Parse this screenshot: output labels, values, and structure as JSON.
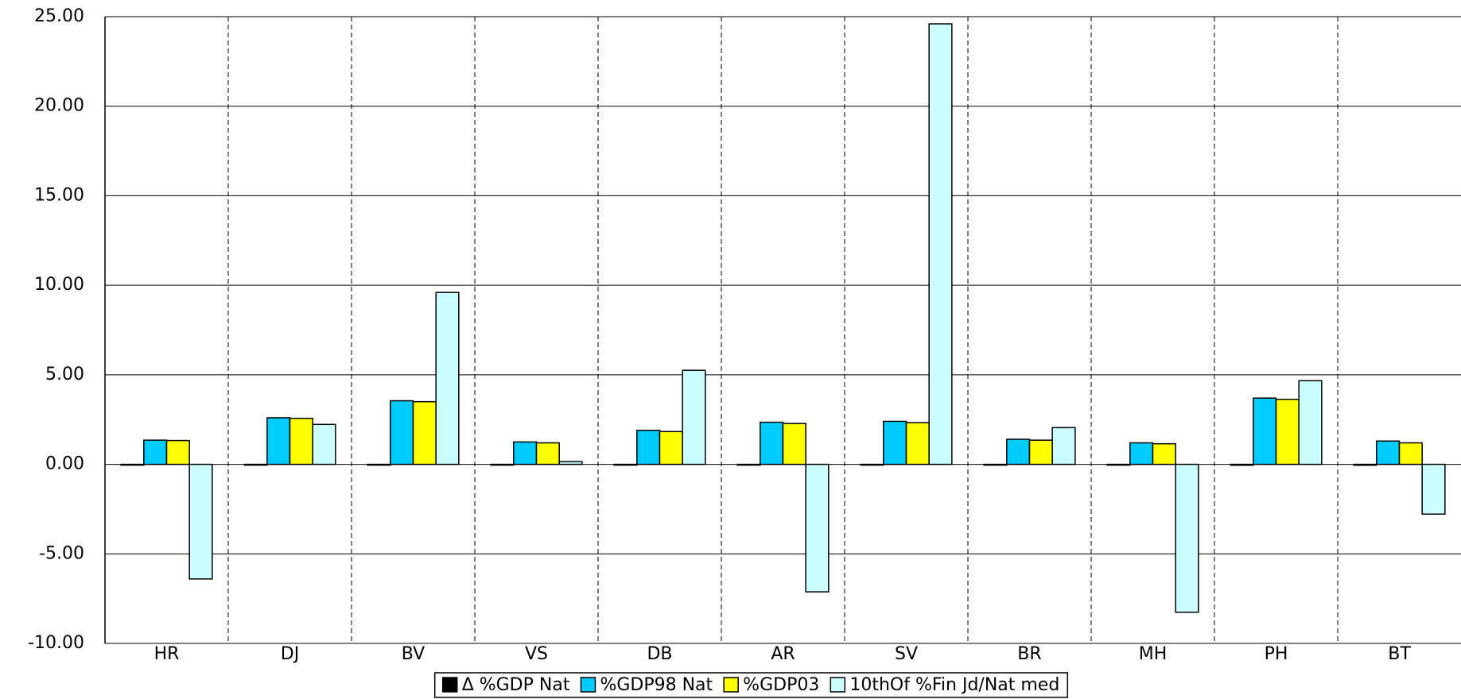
{
  "chart_data": {
    "type": "bar",
    "categories": [
      "HR",
      "DJ",
      "BV",
      "VS",
      "DB",
      "AR",
      "SV",
      "BR",
      "MH",
      "PH",
      "BT"
    ],
    "series": [
      {
        "name": "Δ %GDP Nat",
        "color": "#000000",
        "values": [
          -0.02,
          -0.03,
          -0.03,
          -0.03,
          -0.03,
          -0.03,
          -0.03,
          -0.04,
          -0.04,
          -0.05,
          -0.05
        ]
      },
      {
        "name": "%GDP98 Nat",
        "color": "#00ccff",
        "values": [
          1.35,
          2.6,
          3.55,
          1.25,
          1.9,
          2.35,
          2.4,
          1.4,
          1.2,
          3.7,
          1.3
        ]
      },
      {
        "name": "%GDP03",
        "color": "#ffff00",
        "values": [
          1.33,
          2.57,
          3.5,
          1.2,
          1.83,
          2.28,
          2.33,
          1.35,
          1.15,
          3.63,
          1.2
        ]
      },
      {
        "name": "10thOf %Fin Jd/Nat med",
        "color": "#ccffff",
        "values": [
          -6.4,
          2.23,
          9.6,
          0.15,
          5.25,
          -7.12,
          24.6,
          2.05,
          -8.26,
          4.67,
          -2.78
        ]
      }
    ],
    "ylim": [
      -10,
      25
    ],
    "yticks": [
      {
        "value": -10,
        "label": "-10.00"
      },
      {
        "value": -5,
        "label": "-5.00"
      },
      {
        "value": 0,
        "label": "0.00"
      },
      {
        "value": 5,
        "label": "5.00"
      },
      {
        "value": 10,
        "label": "10.00"
      },
      {
        "value": 15,
        "label": "15.00"
      },
      {
        "value": 20,
        "label": "20.00"
      },
      {
        "value": 25,
        "label": "25.00"
      }
    ],
    "grid": true,
    "legend": "bottom"
  }
}
